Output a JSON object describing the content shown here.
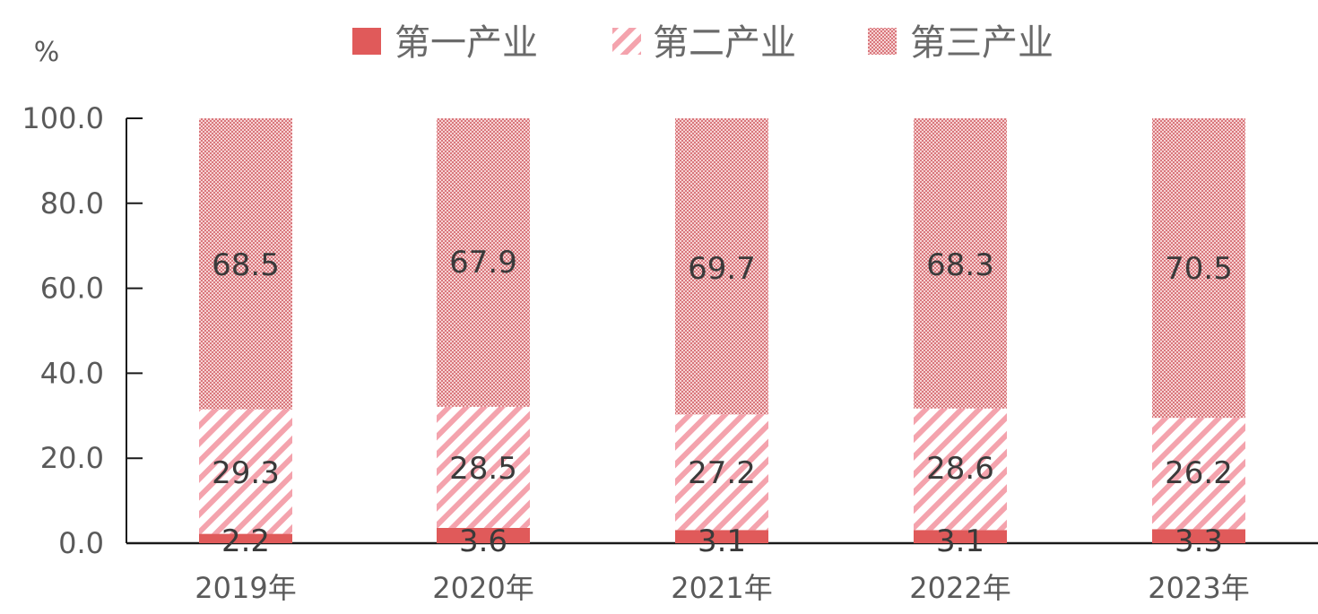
{
  "chart_data": {
    "type": "bar",
    "stacked": true,
    "unit": "%",
    "categories": [
      "2019年",
      "2020年",
      "2021年",
      "2022年",
      "2023年"
    ],
    "series": [
      {
        "name": "第一产业",
        "values": [
          2.2,
          3.6,
          3.1,
          3.1,
          3.3
        ],
        "color": "#e05a5a",
        "fill": "solid"
      },
      {
        "name": "第二产业",
        "values": [
          29.3,
          28.5,
          27.2,
          28.6,
          26.2
        ],
        "color": "#f4a3ad",
        "fill": "diagonal-stripes"
      },
      {
        "name": "第三产业",
        "values": [
          68.5,
          67.9,
          69.7,
          68.3,
          70.5
        ],
        "color": "#e8a3a6",
        "fill": "dotted"
      }
    ],
    "y_ticks": [
      "0.0",
      "20.0",
      "40.0",
      "60.0",
      "80.0",
      "100.0"
    ],
    "ylim": [
      0,
      100
    ],
    "legend_position": "top",
    "grid": false
  }
}
